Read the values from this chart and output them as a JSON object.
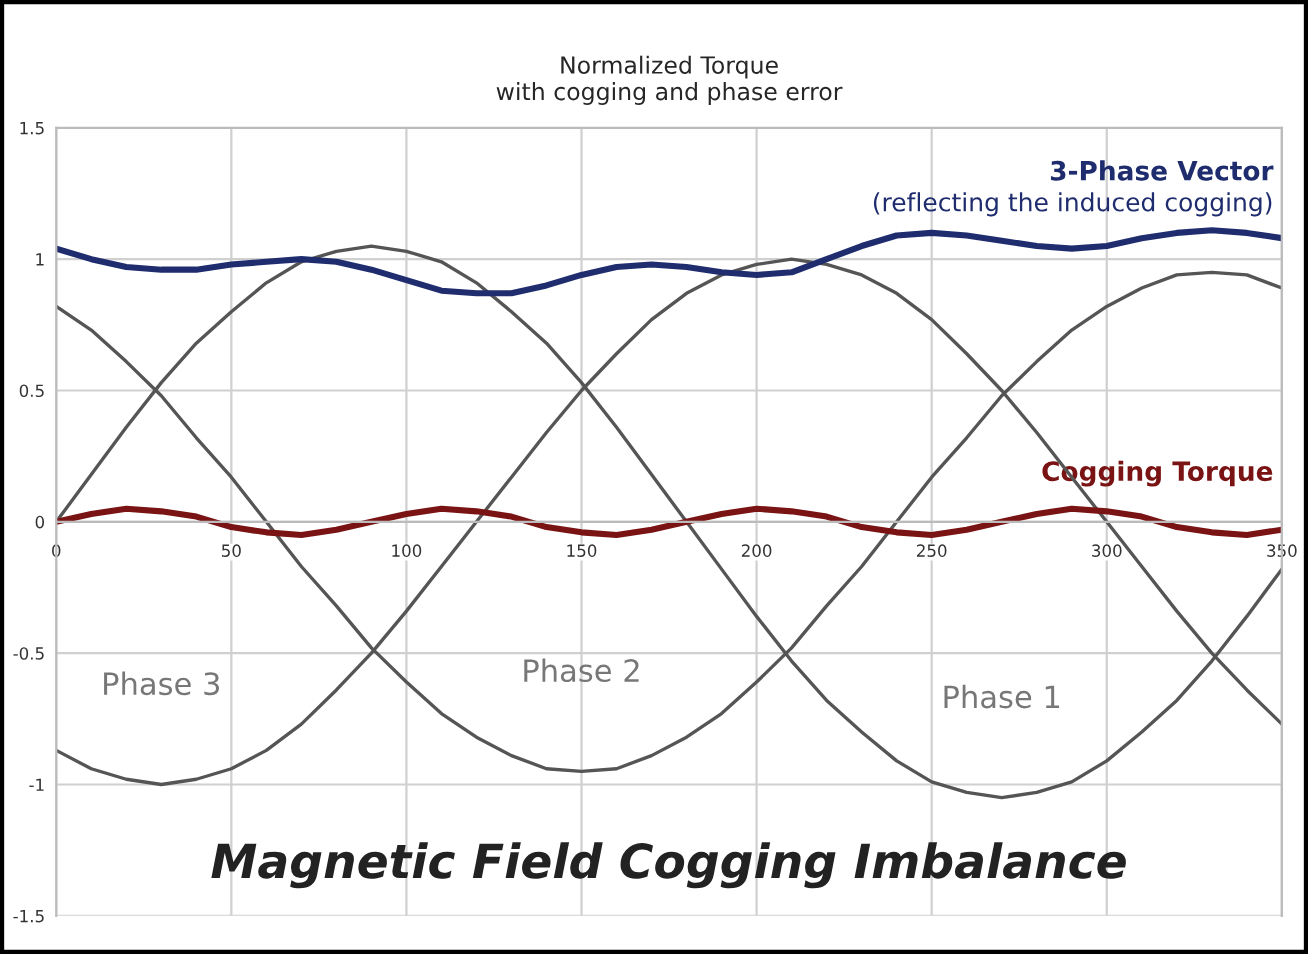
{
  "chart_data": {
    "type": "line",
    "title": "Normalized Torque\nwith cogging and phase error",
    "x": [
      0,
      10,
      20,
      30,
      40,
      50,
      60,
      70,
      80,
      90,
      100,
      110,
      120,
      130,
      140,
      150,
      160,
      170,
      180,
      190,
      200,
      210,
      220,
      230,
      240,
      250,
      260,
      270,
      280,
      290,
      300,
      310,
      320,
      330,
      340,
      350
    ],
    "series": [
      {
        "name": "Phase 3",
        "color": "#555555",
        "values": [
          -0.87,
          -0.94,
          -0.98,
          -1.0,
          -0.98,
          -0.94,
          -0.87,
          -0.77,
          -0.64,
          -0.5,
          -0.34,
          -0.17,
          0,
          0.17,
          0.34,
          0.5,
          0.64,
          0.77,
          0.87,
          0.94,
          0.98,
          1.0,
          0.98,
          0.94,
          0.87,
          0.77,
          0.64,
          0.5,
          0.34,
          0.17,
          0,
          -0.17,
          -0.34,
          -0.5,
          -0.64,
          -0.77
        ]
      },
      {
        "name": "Phase 2",
        "color": "#555555",
        "values": [
          0.82,
          0.73,
          0.61,
          0.48,
          0.32,
          0.17,
          0,
          -0.17,
          -0.32,
          -0.48,
          -0.61,
          -0.73,
          -0.82,
          -0.89,
          -0.94,
          -0.95,
          -0.94,
          -0.89,
          -0.82,
          -0.73,
          -0.61,
          -0.48,
          -0.32,
          -0.17,
          0,
          0.17,
          0.32,
          0.48,
          0.61,
          0.73,
          0.82,
          0.89,
          0.94,
          0.95,
          0.94,
          0.89
        ]
      },
      {
        "name": "Phase 1",
        "color": "#555555",
        "values": [
          0,
          0.18,
          0.36,
          0.53,
          0.68,
          0.8,
          0.91,
          0.99,
          1.03,
          1.05,
          1.03,
          0.99,
          0.91,
          0.8,
          0.68,
          0.53,
          0.36,
          0.18,
          0,
          -0.18,
          -0.36,
          -0.53,
          -0.68,
          -0.8,
          -0.91,
          -0.99,
          -1.03,
          -1.05,
          -1.03,
          -0.99,
          -0.91,
          -0.8,
          -0.68,
          -0.53,
          -0.36,
          -0.18
        ]
      },
      {
        "name": "Cogging Torque",
        "color": "#7a1414",
        "values": [
          0,
          0.03,
          0.05,
          0.04,
          0.02,
          -0.02,
          -0.04,
          -0.05,
          -0.03,
          0,
          0.03,
          0.05,
          0.04,
          0.02,
          -0.02,
          -0.04,
          -0.05,
          -0.03,
          0,
          0.03,
          0.05,
          0.04,
          0.02,
          -0.02,
          -0.04,
          -0.05,
          -0.03,
          0,
          0.03,
          0.05,
          0.04,
          0.02,
          -0.02,
          -0.04,
          -0.05,
          -0.03
        ]
      },
      {
        "name": "3-Phase Vector",
        "color": "#1f2d6e",
        "values": [
          1.04,
          1.0,
          0.97,
          0.96,
          0.96,
          0.98,
          0.99,
          1.0,
          0.99,
          0.96,
          0.92,
          0.88,
          0.87,
          0.87,
          0.9,
          0.94,
          0.97,
          0.98,
          0.97,
          0.95,
          0.94,
          0.95,
          1.0,
          1.05,
          1.09,
          1.1,
          1.09,
          1.07,
          1.05,
          1.04,
          1.05,
          1.08,
          1.1,
          1.11,
          1.1,
          1.08
        ]
      }
    ],
    "xlim": [
      0,
      350
    ],
    "xticks": [
      0,
      50,
      100,
      150,
      200,
      250,
      300,
      350
    ],
    "ylim": [
      -1.5,
      1.5
    ],
    "yticks": [
      {
        "value": -1.5,
        "label": "-1.5"
      },
      {
        "value": -1,
        "label": "-1"
      },
      {
        "value": -0.5,
        "label": "-0.5"
      },
      0,
      0.5,
      1,
      1.5
    ],
    "grid": true,
    "legend": false,
    "marker": "none",
    "line_style": "solid",
    "annotations": [
      "(reflecting the induced cogging)",
      "Magnetic Field Cogging Imbalance"
    ]
  }
}
